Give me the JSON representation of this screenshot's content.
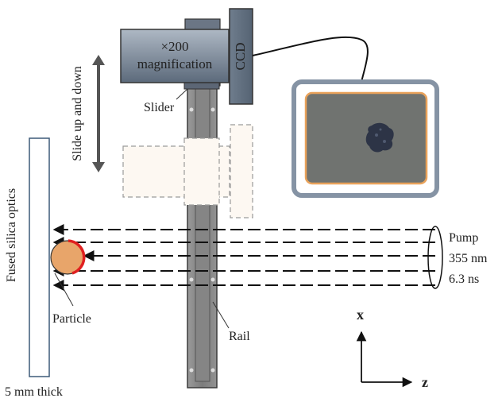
{
  "microscope": {
    "line1": "×200",
    "line2": "magnification",
    "ccd": "CCD"
  },
  "slide_label": "Slide up and down",
  "slider_label": "Slider",
  "optic_label": "Fused silica optics",
  "thickness_label": "5 mm thick",
  "particle_label": "Particle",
  "rail_label": "Rail",
  "pump": {
    "line1": "Pump",
    "line2": "355 nm",
    "line3": "6.3 ns"
  },
  "axes": {
    "x": "x",
    "z": "z"
  },
  "colors": {
    "body_gradient_top": "#a6b0bc",
    "body_gradient_bottom": "#5e6c7c",
    "monitor_frame": "#8593a4",
    "screen": "#6f726e",
    "screen_border": "#e9a25a",
    "particle_fill": "#e8a56a",
    "particle_edge": "#e02020",
    "optic_edge": "#3d5a78",
    "rail": "#8a8a8a"
  }
}
